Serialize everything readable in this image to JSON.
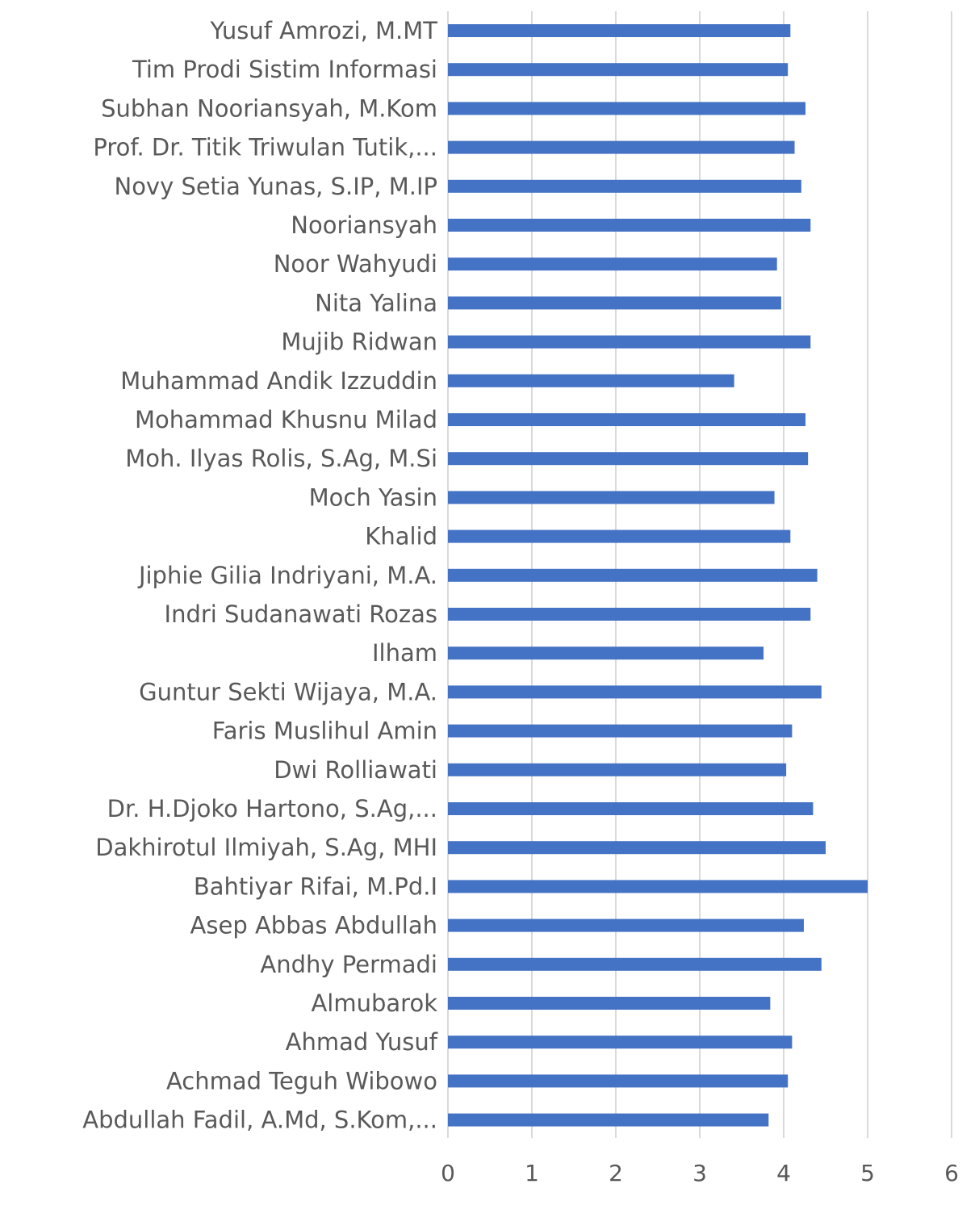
{
  "chart_data": {
    "type": "bar",
    "orientation": "horizontal",
    "title": "",
    "xlabel": "",
    "ylabel": "",
    "xlim": [
      0,
      6
    ],
    "ticks": [
      0,
      1,
      2,
      3,
      4,
      5,
      6
    ],
    "grid": true,
    "legend": "none",
    "bar_color": "#4472C4",
    "categories": [
      "Yusuf Amrozi, M.MT",
      "Tim Prodi Sistim Informasi",
      "Subhan Nooriansyah, M.Kom",
      "Prof. Dr. Titik Triwulan Tutik,...",
      "Novy Setia Yunas, S.IP, M.IP",
      "Nooriansyah",
      "Noor Wahyudi",
      "Nita Yalina",
      "Mujib Ridwan",
      "Muhammad Andik Izzuddin",
      "Mohammad Khusnu Milad",
      "Moh. Ilyas Rolis, S.Ag, M.Si",
      "Moch Yasin",
      "Khalid",
      "Jiphie Gilia Indriyani, M.A.",
      "Indri Sudanawati Rozas",
      "Ilham",
      "Guntur Sekti Wijaya, M.A.",
      "Faris Muslihul Amin",
      "Dwi Rolliawati",
      "Dr. H.Djoko Hartono, S.Ag,...",
      "Dakhirotul Ilmiyah, S.Ag, MHI",
      "Bahtiyar Rifai, M.Pd.I",
      "Asep Abbas Abdullah",
      "Andhy Permadi",
      "Almubarok",
      "Ahmad Yusuf",
      "Achmad Teguh Wibowo",
      "Abdullah Fadil, A.Md, S.Kom,..."
    ],
    "values": [
      4.08,
      4.05,
      4.26,
      4.13,
      4.21,
      4.32,
      3.92,
      3.97,
      4.32,
      3.41,
      4.26,
      4.29,
      3.89,
      4.08,
      4.4,
      4.32,
      3.76,
      4.45,
      4.1,
      4.03,
      4.35,
      4.5,
      5.0,
      4.24,
      4.45,
      3.84,
      4.1,
      4.05,
      3.82
    ]
  }
}
